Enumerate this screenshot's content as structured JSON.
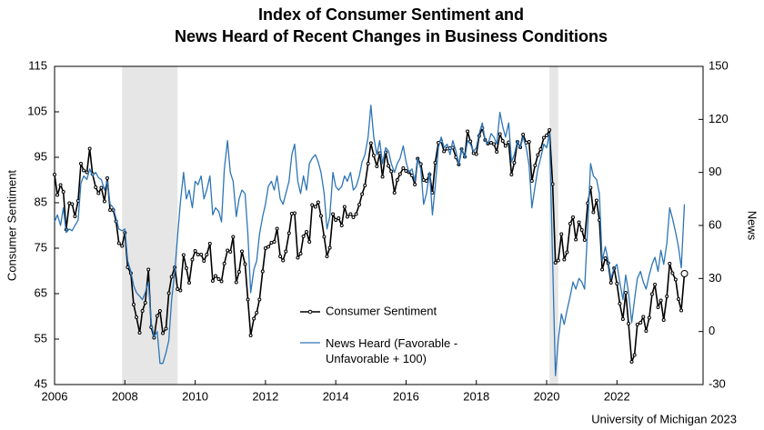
{
  "chart_data": {
    "type": "line",
    "title": [
      "Index of Consumer Sentiment and",
      "News Heard of Recent Changes in Business Conditions"
    ],
    "y_label": "Consumer Sentiment",
    "y2_label": "News",
    "source": "University of Michigan 2023",
    "xlim": [
      2006,
      2024.45
    ],
    "xticks": [
      2006,
      2008,
      2010,
      2012,
      2014,
      2016,
      2018,
      2020,
      2022
    ],
    "ylim": [
      45,
      115
    ],
    "yticks": [
      45,
      55,
      65,
      75,
      85,
      95,
      105,
      115
    ],
    "y2lim": [
      -30,
      150
    ],
    "y2ticks": [
      -30,
      0,
      30,
      60,
      90,
      120,
      150
    ],
    "shaded_periods": [
      [
        2007.92,
        2009.5
      ],
      [
        2020.08,
        2020.33
      ]
    ],
    "shade_color": "#e6e6e6",
    "x": [
      2006,
      2006.08,
      2006.17,
      2006.25,
      2006.33,
      2006.42,
      2006.5,
      2006.58,
      2006.67,
      2006.75,
      2006.83,
      2006.92,
      2007,
      2007.08,
      2007.17,
      2007.25,
      2007.33,
      2007.42,
      2007.5,
      2007.58,
      2007.67,
      2007.75,
      2007.83,
      2007.92,
      2008,
      2008.08,
      2008.17,
      2008.25,
      2008.33,
      2008.42,
      2008.5,
      2008.58,
      2008.67,
      2008.75,
      2008.83,
      2008.92,
      2009,
      2009.08,
      2009.17,
      2009.25,
      2009.33,
      2009.42,
      2009.5,
      2009.58,
      2009.67,
      2009.75,
      2009.83,
      2009.92,
      2010,
      2010.08,
      2010.17,
      2010.25,
      2010.33,
      2010.42,
      2010.5,
      2010.58,
      2010.67,
      2010.75,
      2010.83,
      2010.92,
      2011,
      2011.08,
      2011.17,
      2011.25,
      2011.33,
      2011.42,
      2011.5,
      2011.58,
      2011.67,
      2011.75,
      2011.83,
      2011.92,
      2012,
      2012.08,
      2012.17,
      2012.25,
      2012.33,
      2012.42,
      2012.5,
      2012.58,
      2012.67,
      2012.75,
      2012.83,
      2012.92,
      2013,
      2013.08,
      2013.17,
      2013.25,
      2013.33,
      2013.42,
      2013.5,
      2013.58,
      2013.67,
      2013.75,
      2013.83,
      2013.92,
      2014,
      2014.08,
      2014.17,
      2014.25,
      2014.33,
      2014.42,
      2014.5,
      2014.58,
      2014.67,
      2014.75,
      2014.83,
      2014.92,
      2015,
      2015.08,
      2015.17,
      2015.25,
      2015.33,
      2015.42,
      2015.5,
      2015.58,
      2015.67,
      2015.75,
      2015.83,
      2015.92,
      2016,
      2016.08,
      2016.17,
      2016.25,
      2016.33,
      2016.42,
      2016.5,
      2016.58,
      2016.67,
      2016.75,
      2016.83,
      2016.92,
      2017,
      2017.08,
      2017.17,
      2017.25,
      2017.33,
      2017.42,
      2017.5,
      2017.58,
      2017.67,
      2017.75,
      2017.83,
      2017.92,
      2018,
      2018.08,
      2018.17,
      2018.25,
      2018.33,
      2018.42,
      2018.5,
      2018.58,
      2018.67,
      2018.75,
      2018.83,
      2018.92,
      2019,
      2019.08,
      2019.17,
      2019.25,
      2019.33,
      2019.42,
      2019.5,
      2019.58,
      2019.67,
      2019.75,
      2019.83,
      2019.92,
      2020,
      2020.08,
      2020.17,
      2020.25,
      2020.33,
      2020.42,
      2020.5,
      2020.58,
      2020.67,
      2020.75,
      2020.83,
      2020.92,
      2021,
      2021.08,
      2021.17,
      2021.25,
      2021.33,
      2021.42,
      2021.5,
      2021.58,
      2021.67,
      2021.75,
      2021.83,
      2021.92,
      2022,
      2022.08,
      2022.17,
      2022.25,
      2022.33,
      2022.42,
      2022.5,
      2022.58,
      2022.67,
      2022.75,
      2022.83,
      2022.92,
      2023,
      2023.08,
      2023.17,
      2023.25,
      2023.33,
      2023.42,
      2023.5,
      2023.58,
      2023.67,
      2023.75,
      2023.83,
      2023.92
    ],
    "series": [
      {
        "name": "Consumer Sentiment",
        "color": "#000000",
        "markers": true,
        "values": [
          91.2,
          86.7,
          88.9,
          87.4,
          79.1,
          84.9,
          84.7,
          82.0,
          85.4,
          93.6,
          92.1,
          91.7,
          96.9,
          91.3,
          88.4,
          87.1,
          88.3,
          85.3,
          90.4,
          83.4,
          83.4,
          80.9,
          76.1,
          75.5,
          78.4,
          70.8,
          69.5,
          62.6,
          59.8,
          56.4,
          61.2,
          63.0,
          70.3,
          57.6,
          55.3,
          60.1,
          61.2,
          56.3,
          57.3,
          65.1,
          68.7,
          70.8,
          66.0,
          65.7,
          73.5,
          70.6,
          67.4,
          72.5,
          74.4,
          73.6,
          73.6,
          72.2,
          73.6,
          76.0,
          67.8,
          68.9,
          68.2,
          67.7,
          71.6,
          74.5,
          74.2,
          77.5,
          67.5,
          69.8,
          74.3,
          71.5,
          63.7,
          55.8,
          59.5,
          60.8,
          63.7,
          69.9,
          75.0,
          75.3,
          76.2,
          76.4,
          79.3,
          73.2,
          72.3,
          74.3,
          78.3,
          82.6,
          82.7,
          72.9,
          73.8,
          77.6,
          78.6,
          76.4,
          84.5,
          84.1,
          85.1,
          82.1,
          77.5,
          73.2,
          75.1,
          82.5,
          81.2,
          81.6,
          80.0,
          84.1,
          81.9,
          82.5,
          81.8,
          82.5,
          84.6,
          86.9,
          88.8,
          93.6,
          98.1,
          95.4,
          93.0,
          95.9,
          90.7,
          96.1,
          93.1,
          91.9,
          87.2,
          90.0,
          91.3,
          92.6,
          92.0,
          91.7,
          91.0,
          89.0,
          94.7,
          93.5,
          90.0,
          89.8,
          91.2,
          87.2,
          93.8,
          98.2,
          98.5,
          96.3,
          96.9,
          97.0,
          97.1,
          95.0,
          93.4,
          96.8,
          95.1,
          100.7,
          98.5,
          95.9,
          95.7,
          99.7,
          101.4,
          98.8,
          98.0,
          98.2,
          97.9,
          96.2,
          100.1,
          98.6,
          97.5,
          98.3,
          91.2,
          93.8,
          98.4,
          97.2,
          100.0,
          98.2,
          98.4,
          89.8,
          93.2,
          95.5,
          96.8,
          99.3,
          99.8,
          101.0,
          89.1,
          71.8,
          72.3,
          78.1,
          72.5,
          74.1,
          80.4,
          81.8,
          76.9,
          80.7,
          79.0,
          76.8,
          84.9,
          88.3,
          82.9,
          85.5,
          81.2,
          70.3,
          72.8,
          71.7,
          67.4,
          70.6,
          67.2,
          62.8,
          59.4,
          65.2,
          58.4,
          50.0,
          51.5,
          58.2,
          58.6,
          59.9,
          56.8,
          59.7,
          64.9,
          67.0,
          62.0,
          63.5,
          59.2,
          64.4,
          71.6,
          69.5,
          68.1,
          63.8,
          61.3,
          69.4
        ]
      },
      {
        "name": "News Heard (Favorable - Unfavorable + 100)",
        "color": "#2e75b6",
        "axis": "y2",
        "markers": false,
        "values": [
          62,
          66,
          60,
          70,
          56,
          58,
          57,
          60,
          63,
          84,
          88,
          86,
          92,
          88,
          90,
          87,
          86,
          80,
          85,
          72,
          70,
          64,
          58,
          57,
          58,
          40,
          34,
          26,
          22,
          20,
          18,
          22,
          28,
          5,
          -3,
          0,
          -18,
          -18,
          -12,
          -5,
          18,
          34,
          54,
          73,
          90,
          75,
          80,
          70,
          85,
          83,
          88,
          75,
          80,
          88,
          66,
          70,
          68,
          62,
          92,
          108,
          90,
          85,
          65,
          75,
          80,
          78,
          55,
          22,
          35,
          40,
          55,
          65,
          72,
          82,
          85,
          80,
          88,
          75,
          72,
          78,
          85,
          100,
          106,
          85,
          78,
          88,
          80,
          95,
          98,
          100,
          96,
          90,
          78,
          58,
          65,
          90,
          82,
          80,
          82,
          88,
          85,
          90,
          80,
          82,
          88,
          96,
          100,
          110,
          128,
          110,
          100,
          108,
          95,
          104,
          102,
          95,
          90,
          95,
          98,
          105,
          96,
          90,
          92,
          85,
          98,
          92,
          72,
          78,
          90,
          66,
          82,
          104,
          110,
          104,
          106,
          100,
          108,
          102,
          94,
          104,
          98,
          108,
          106,
          102,
          104,
          112,
          118,
          108,
          106,
          112,
          110,
          106,
          124,
          116,
          110,
          118,
          96,
          100,
          108,
          104,
          110,
          104,
          94,
          70,
          82,
          92,
          98,
          106,
          104,
          112,
          40,
          -25,
          -5,
          10,
          4,
          12,
          20,
          28,
          24,
          30,
          28,
          24,
          60,
          95,
          88,
          86,
          78,
          40,
          48,
          40,
          30,
          36,
          38,
          28,
          18,
          32,
          22,
          5,
          18,
          30,
          34,
          28,
          24,
          32,
          38,
          42,
          34,
          46,
          38,
          50,
          70,
          64,
          56,
          48,
          36,
          72
        ]
      }
    ]
  }
}
